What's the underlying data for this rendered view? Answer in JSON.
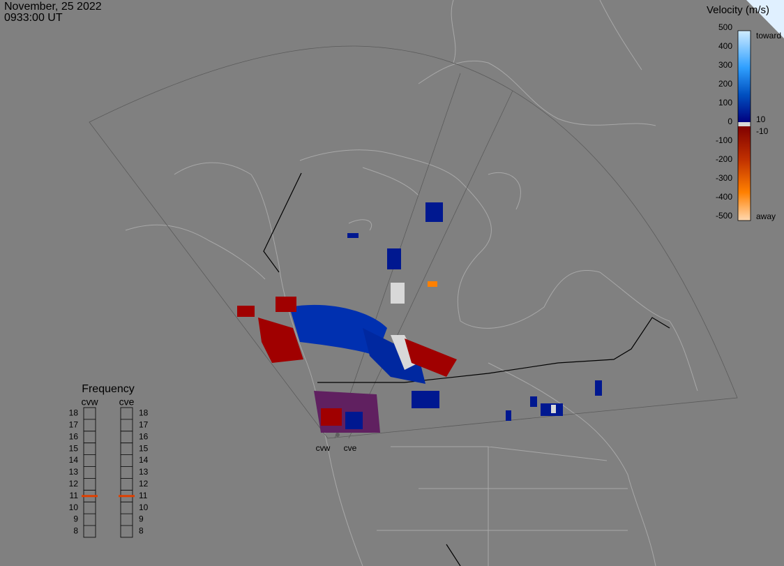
{
  "header": {
    "date": "November, 25 2022",
    "time": "0933:00 UT"
  },
  "colorbar": {
    "title": "Velocity (m/s)",
    "ticks": [
      500,
      400,
      300,
      200,
      100,
      0,
      -100,
      -200,
      -300,
      -400,
      -500
    ],
    "toward": "toward",
    "away": "away",
    "near_pos": 10,
    "near_neg": -10
  },
  "frequency": {
    "title": "Frequency",
    "radars": [
      "cvw",
      "cve"
    ],
    "levels": [
      18,
      17,
      16,
      15,
      14,
      13,
      12,
      11,
      10,
      9,
      8
    ],
    "selected": [
      11,
      11
    ]
  },
  "map": {
    "sites": [
      "cvw",
      "cve"
    ]
  }
}
